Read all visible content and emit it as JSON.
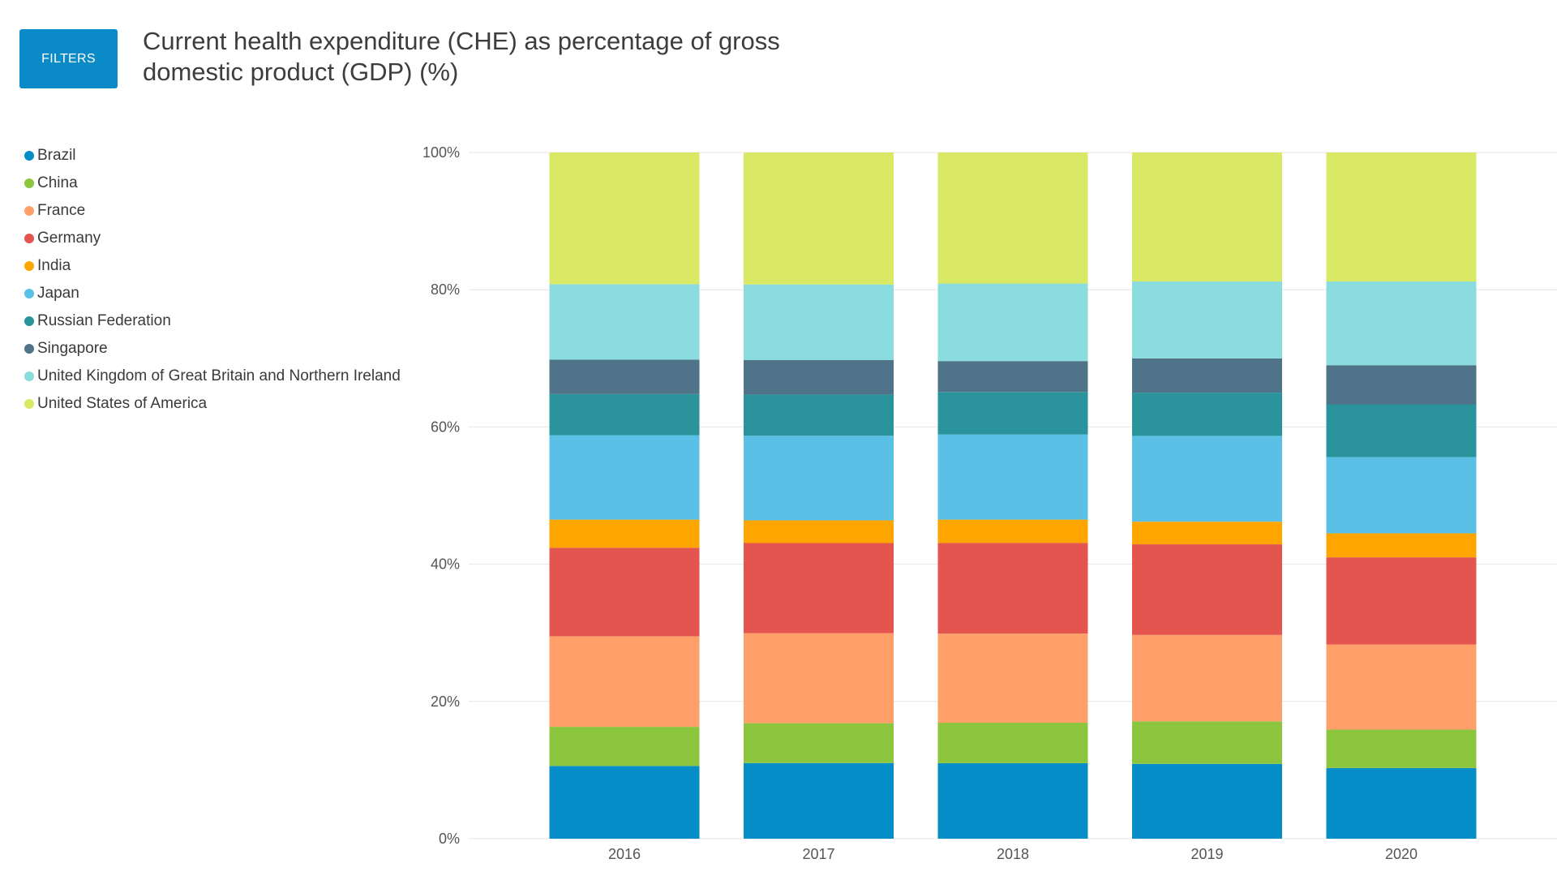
{
  "toolbar": {
    "filters_label": "FILTERS"
  },
  "colors": {
    "button": "#0a8ac6",
    "grid": "#e6e6e6"
  },
  "chart_data": {
    "type": "bar",
    "stacked": "percent",
    "title": "Current health expenditure (CHE) as percentage of gross domestic product (GDP) (%)",
    "xlabel": "",
    "ylabel": "",
    "categories": [
      "2016",
      "2017",
      "2018",
      "2019",
      "2020"
    ],
    "ylim": [
      0,
      100
    ],
    "yticks": [
      "0%",
      "20%",
      "40%",
      "60%",
      "80%",
      "100%"
    ],
    "grid": true,
    "legend_position": "left",
    "series": [
      {
        "name": "Brazil",
        "color": "#058dc7",
        "values": [
          10.6,
          11.0,
          11.0,
          10.9,
          10.3
        ]
      },
      {
        "name": "China",
        "color": "#8cc63e",
        "values": [
          5.7,
          5.8,
          5.9,
          6.2,
          5.6
        ]
      },
      {
        "name": "France",
        "color": "#ffa06b",
        "values": [
          13.2,
          13.1,
          13.0,
          12.6,
          12.4
        ]
      },
      {
        "name": "Germany",
        "color": "#e4554f",
        "values": [
          12.9,
          13.1,
          13.2,
          13.2,
          12.7
        ]
      },
      {
        "name": "India",
        "color": "#ffa500",
        "values": [
          4.1,
          3.3,
          3.4,
          3.3,
          3.5
        ]
      },
      {
        "name": "Japan",
        "color": "#5bc0e6",
        "values": [
          12.3,
          12.3,
          12.4,
          12.5,
          11.1
        ]
      },
      {
        "name": "Russian Federation",
        "color": "#2a939c",
        "values": [
          6.0,
          6.0,
          6.2,
          6.3,
          7.7
        ]
      },
      {
        "name": "Singapore",
        "color": "#4f7388",
        "values": [
          5.0,
          5.0,
          4.5,
          5.0,
          5.7
        ]
      },
      {
        "name": "United Kingdom of Great Britain and Northern Ireland",
        "color": "#8adcde",
        "values": [
          11.0,
          11.0,
          11.3,
          11.2,
          12.2
        ]
      },
      {
        "name": "United States of America",
        "color": "#d9e865",
        "values": [
          19.2,
          19.2,
          19.1,
          18.8,
          18.8
        ]
      }
    ]
  }
}
